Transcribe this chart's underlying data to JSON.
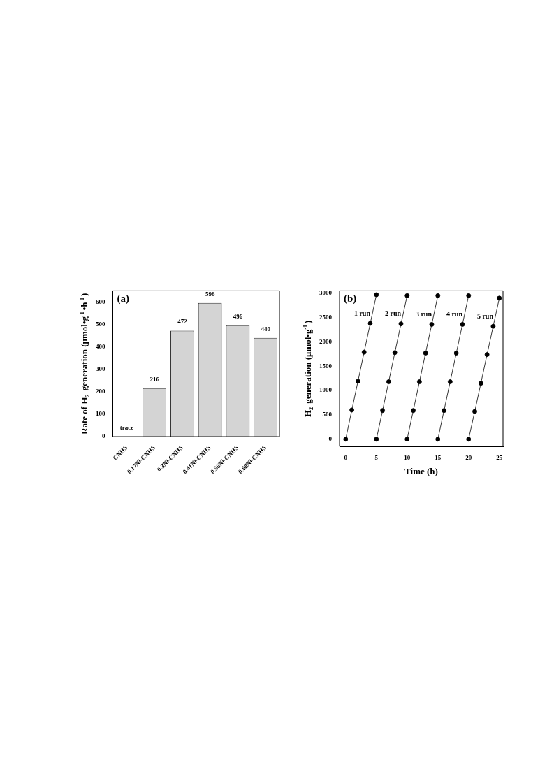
{
  "chart_data": [
    {
      "type": "bar",
      "annotations": [
        "(a)"
      ],
      "ylabel": "Rate of H$_{2}$ generation (μmol•g$^{-1}$•h$^{-1}$)",
      "categories": [
        "CNHS",
        "0.17Ni-CNHS",
        "0.3Ni-CNHS",
        "0.41Ni-CNHS",
        "0.56Ni-CNHS",
        "0.68Ni-CNHS"
      ],
      "values": [
        0,
        216,
        472,
        596,
        496,
        440
      ],
      "value_labels": [
        "trace",
        "216",
        "472",
        "596",
        "496",
        "440"
      ],
      "color": "#d4d4d4",
      "ylim": [
        0,
        650
      ],
      "yticks": [
        0,
        100,
        200,
        300,
        400,
        500,
        600
      ],
      "grid": false,
      "legend": false
    },
    {
      "type": "line",
      "annotations": [
        "(b)"
      ],
      "xlabel": "Time (h)",
      "ylabel": "H$_{2}$ generation (μmol•g$^{-1}$)",
      "marker": "circle",
      "line_style": "solid",
      "grid": false,
      "legend": false,
      "xlim": [
        -1,
        25.6
      ],
      "xticks": [
        0,
        5,
        10,
        15,
        20,
        25
      ],
      "ylim": [
        -150,
        3050
      ],
      "yticks": [
        0,
        500,
        1000,
        1500,
        2000,
        2500,
        3000
      ],
      "series": [
        {
          "name": "1 run",
          "color": "#000000",
          "x": [
            0,
            1,
            2,
            3,
            4,
            5
          ],
          "values": [
            0,
            600,
            1190,
            1790,
            2380,
            2970
          ]
        },
        {
          "name": "2 run",
          "color": "#000000",
          "x": [
            5,
            6,
            7,
            8,
            9,
            10
          ],
          "values": [
            0,
            590,
            1180,
            1780,
            2370,
            2950
          ]
        },
        {
          "name": "3 run",
          "color": "#000000",
          "x": [
            10,
            11,
            12,
            13,
            14,
            15
          ],
          "values": [
            0,
            590,
            1180,
            1770,
            2360,
            2950
          ]
        },
        {
          "name": "4 run",
          "color": "#000000",
          "x": [
            15,
            16,
            17,
            18,
            19,
            20
          ],
          "values": [
            0,
            590,
            1180,
            1770,
            2360,
            2950
          ]
        },
        {
          "name": "5 run",
          "color": "#000000",
          "x": [
            20,
            21,
            22,
            23,
            24,
            25
          ],
          "values": [
            0,
            570,
            1150,
            1740,
            2320,
            2900
          ]
        }
      ]
    }
  ]
}
